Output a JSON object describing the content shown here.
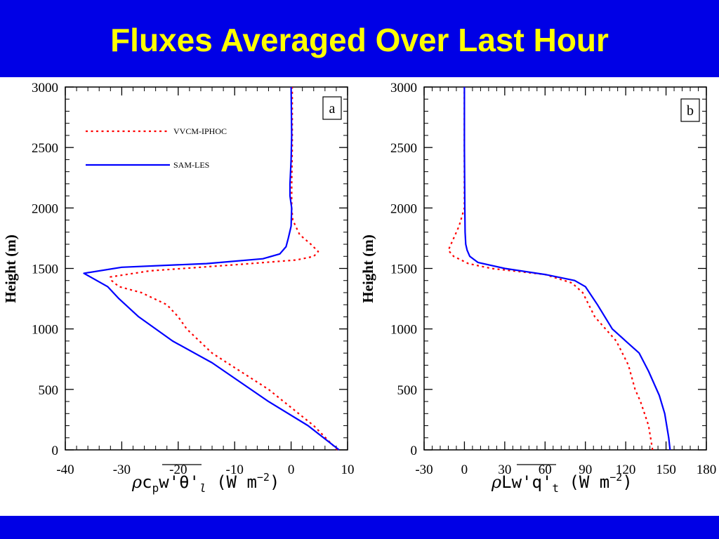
{
  "title": "Fluxes Averaged Over Last Hour",
  "colors": {
    "banner": "#0000e6",
    "title_text": "#ffff00",
    "series_vvcm": "#ff0000",
    "series_sam": "#0000ff"
  },
  "chart_data": [
    {
      "type": "line",
      "panel_label": "a",
      "xlabel": "ρcpw'θ'l (W m−2)",
      "xlabel_parts": {
        "rho": "ρ",
        "c": "c",
        "p": "p",
        "flux": "w'θ'",
        "l": "l",
        "units": " (W m",
        "exp": "−2",
        "close": ")"
      },
      "ylabel": "Height (m)",
      "xlim": [
        -40,
        10
      ],
      "ylim": [
        0,
        3000
      ],
      "xticks": [
        "-40",
        "-30",
        "-20",
        "-10",
        "0",
        "10"
      ],
      "yticks": [
        "0",
        "500",
        "1000",
        "1500",
        "2000",
        "2500",
        "3000"
      ],
      "legend_position": "top-left",
      "series": [
        {
          "name": "VVCM-IPHOC",
          "style": "dotted",
          "color": "#ff0000",
          "x": [
            8.2,
            4,
            -4,
            -14,
            -18.5,
            -20,
            -22,
            -26.5,
            -30.5,
            -31.8,
            -32,
            -25,
            -10,
            1,
            4,
            4.8,
            3.5,
            1.5,
            0.3,
            0.1,
            0.1,
            0.2,
            0.2
          ],
          "y": [
            0,
            200,
            500,
            800,
            1000,
            1100,
            1200,
            1300,
            1350,
            1400,
            1430,
            1480,
            1530,
            1570,
            1600,
            1640,
            1700,
            1780,
            1900,
            2000,
            2200,
            2500,
            3000
          ]
        },
        {
          "name": "SAM-LES",
          "style": "solid",
          "color": "#0000ff",
          "x": [
            8.5,
            3,
            -4,
            -14,
            -21,
            -27,
            -30.5,
            -32.5,
            -36.7,
            -30,
            -15,
            -5,
            -2,
            -0.9,
            -0.5,
            0,
            0.1,
            -0.2,
            -0.2,
            0,
            0.1,
            0
          ],
          "y": [
            0,
            200,
            400,
            720,
            900,
            1100,
            1250,
            1350,
            1460,
            1510,
            1540,
            1580,
            1620,
            1680,
            1750,
            1850,
            2000,
            2100,
            2200,
            2400,
            2600,
            3000
          ]
        }
      ]
    },
    {
      "type": "line",
      "panel_label": "b",
      "xlabel": "ρLw'q't (W m−2)",
      "xlabel_parts": {
        "rho": "ρ",
        "L": "L",
        "flux": "w'q'",
        "t": "t",
        "units": " (W m",
        "exp": "−2",
        "close": ")"
      },
      "ylabel": "Height (m)",
      "xlim": [
        -30,
        180
      ],
      "ylim": [
        0,
        3000
      ],
      "xticks": [
        "-30",
        "0",
        "30",
        "60",
        "90",
        "120",
        "150",
        "180"
      ],
      "yticks": [
        "0",
        "500",
        "1000",
        "1500",
        "2000",
        "2500",
        "3000"
      ],
      "series": [
        {
          "name": "VVCM-IPHOC",
          "style": "dotted",
          "color": "#ff0000",
          "x": [
            140,
            137,
            131,
            127,
            122,
            113,
            105,
            97,
            88,
            80,
            60,
            20,
            3,
            -8,
            -12,
            -10,
            -4,
            0,
            0,
            0
          ],
          "y": [
            0,
            200,
            400,
            500,
            700,
            900,
            1000,
            1100,
            1300,
            1380,
            1450,
            1500,
            1540,
            1600,
            1650,
            1700,
            1850,
            2000,
            2500,
            3000
          ]
        },
        {
          "name": "SAM-LES",
          "style": "solid",
          "color": "#0000ff",
          "x": [
            153,
            152,
            149,
            145,
            137,
            130,
            120,
            110,
            99,
            90,
            82,
            60,
            30,
            10,
            4,
            2,
            1,
            0.5,
            0.3,
            0,
            0
          ],
          "y": [
            0,
            100,
            300,
            450,
            650,
            800,
            900,
            1000,
            1200,
            1350,
            1400,
            1450,
            1500,
            1550,
            1600,
            1650,
            1700,
            1800,
            2000,
            2500,
            3000
          ]
        }
      ]
    }
  ]
}
